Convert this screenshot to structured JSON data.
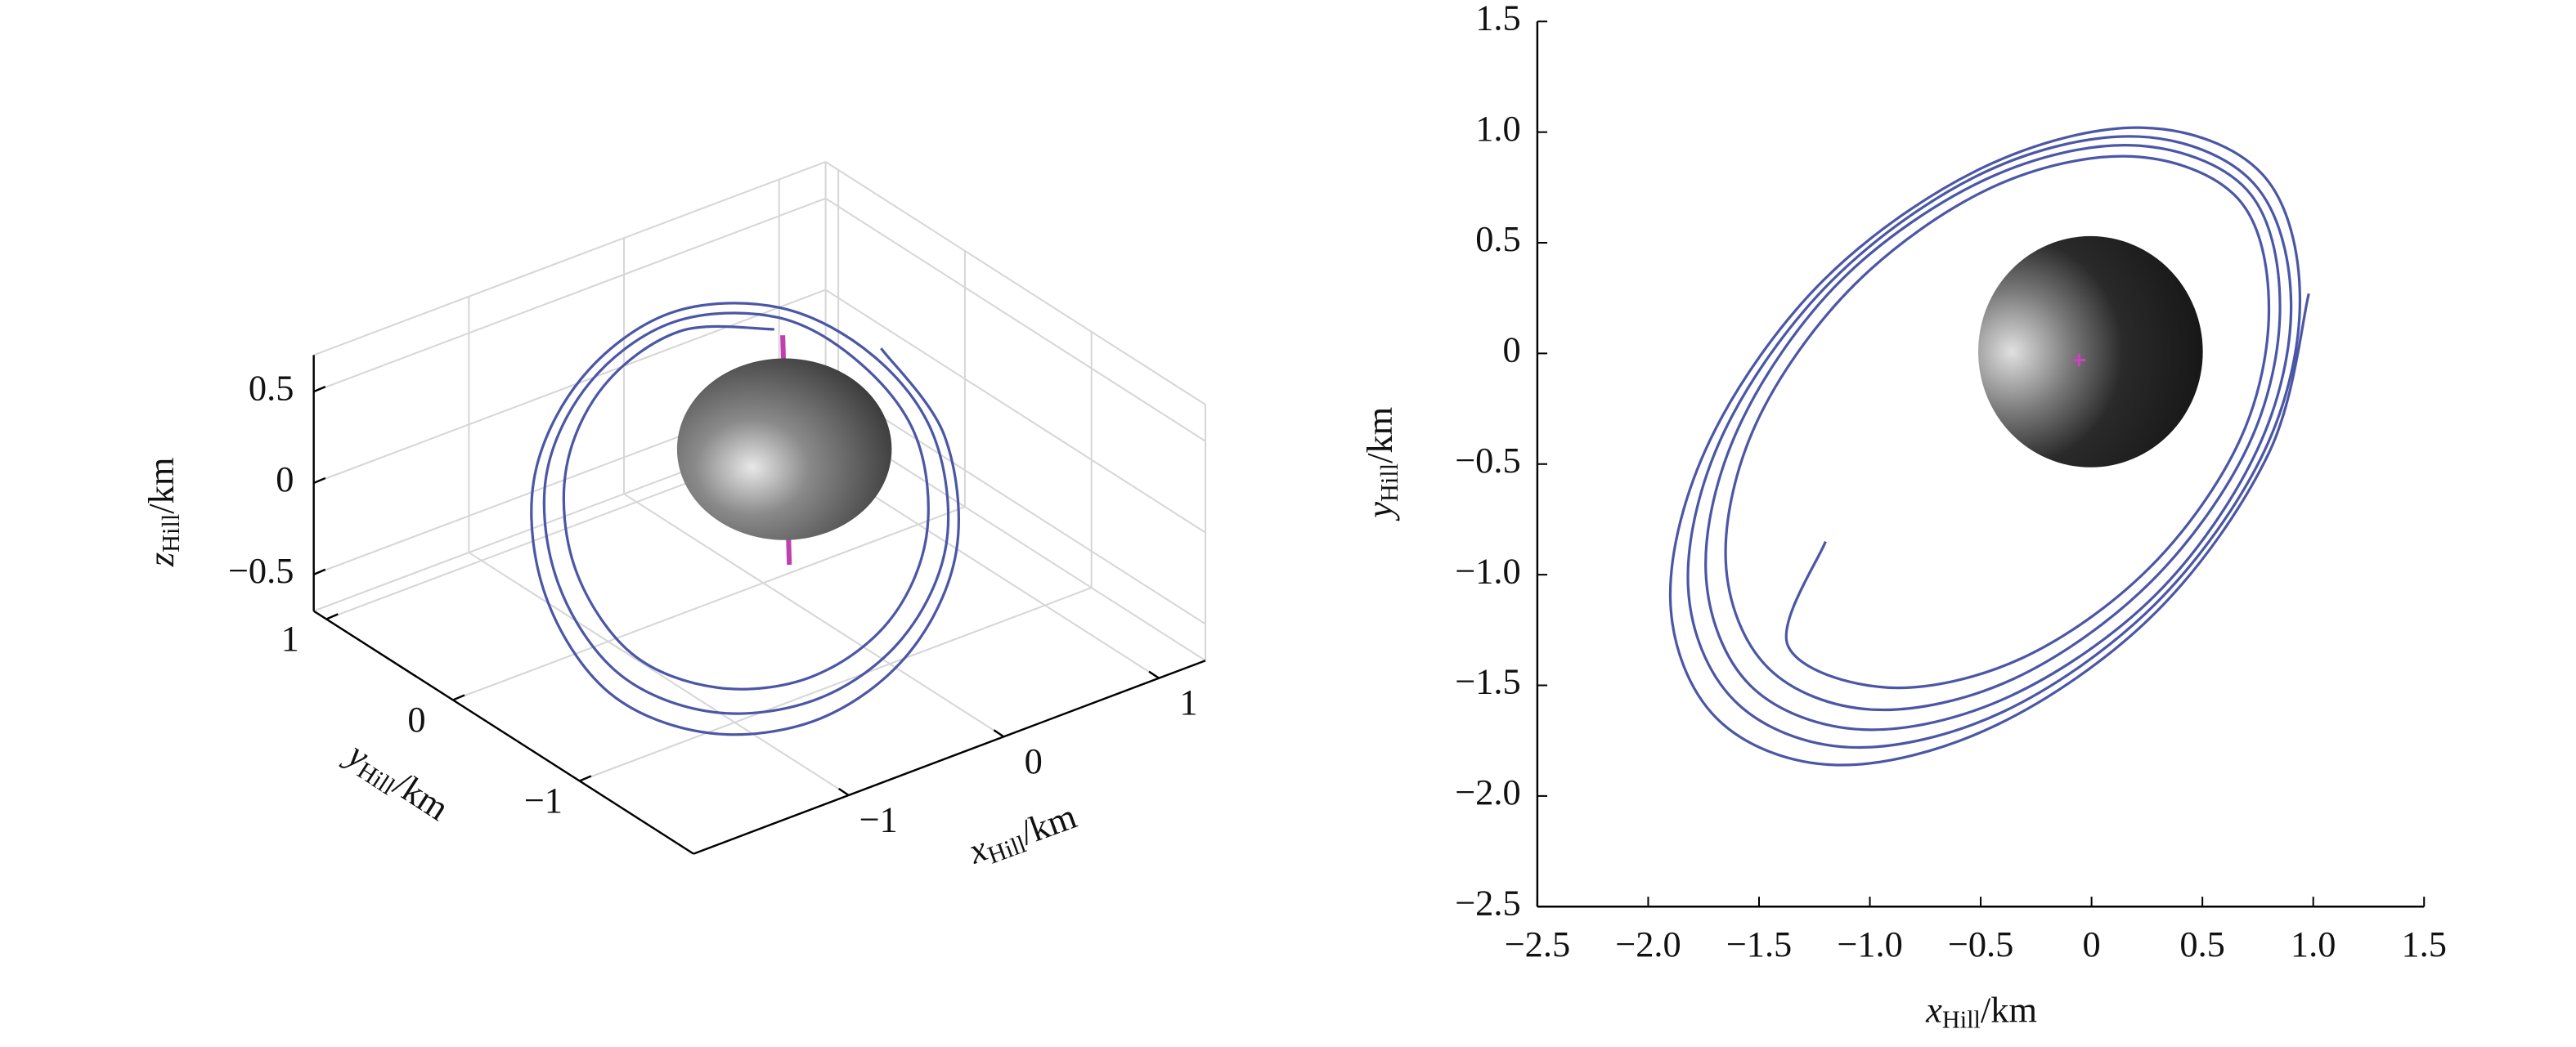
{
  "chart_data": [
    {
      "type": "line3d",
      "xlabel": {
        "symbol": "x",
        "subscript": "Hill",
        "unit": "/km"
      },
      "ylabel": {
        "symbol": "y",
        "subscript": "Hill",
        "unit": "/km"
      },
      "zlabel": {
        "symbol": "z",
        "subscript": "Hill",
        "unit": "/km"
      },
      "color": "#4b57a6",
      "xlim": [
        -2.0,
        1.3
      ],
      "ylim": [
        -1.9,
        1.1
      ],
      "zlim": [
        -0.7,
        0.7
      ],
      "xticks": [
        {
          "value": -1,
          "label": "−1"
        },
        0,
        1
      ],
      "yticks": [
        {
          "value": -1,
          "label": "−1"
        },
        0,
        1
      ],
      "zticks": [
        {
          "value": -0.5,
          "label": "−0.5"
        },
        0,
        0.5
      ],
      "x": [
        0.61,
        0.16,
        -0.44,
        -1.02,
        -1.43,
        -1.56,
        -1.37,
        -0.92,
        -0.32,
        0.26,
        0.67,
        0.8,
        0.7,
        0.19,
        -0.47,
        -1.13,
        -1.59,
        -1.74,
        -1.54,
        -1.03,
        -0.37,
        0.29,
        0.75,
        0.9,
        0.77,
        0.23,
        -0.49,
        -1.21,
        -1.72,
        -1.9,
        -1.69,
        -1.15,
        -0.43,
        0.29,
        0.8,
        0.98
      ],
      "y": [
        0.66,
        0.85,
        0.72,
        0.31,
        -0.27,
        -0.87,
        -1.32,
        -1.51,
        -1.38,
        -0.97,
        -0.39,
        0.21,
        0.74,
        0.94,
        0.79,
        0.33,
        -0.33,
        -0.99,
        -1.5,
        -1.7,
        -1.55,
        -1.09,
        -0.43,
        0.23,
        0.81,
        1.02,
        0.84,
        0.33,
        -0.39,
        -1.11,
        -1.65,
        -1.86,
        -1.68,
        -1.17,
        -0.45,
        0.27
      ],
      "z": [
        0.2,
        0.25,
        0.2,
        0.1,
        -0.05,
        -0.2,
        -0.25,
        -0.25,
        -0.2,
        -0.1,
        0.05,
        0.15,
        0.2,
        0.25,
        0.2,
        0.1,
        -0.05,
        -0.2,
        -0.25,
        -0.25,
        -0.2,
        -0.1,
        0.05,
        0.15,
        0.2,
        0.25,
        0.2,
        0.1,
        -0.05,
        -0.2,
        -0.25,
        -0.25,
        -0.2,
        -0.1,
        0.05,
        0.15
      ]
    },
    {
      "type": "line",
      "xlabel": {
        "symbol": "x",
        "subscript": "Hill",
        "unit": "/km"
      },
      "ylabel": {
        "symbol": "y",
        "subscript": "Hill",
        "unit": "/km"
      },
      "color": "#4b57a6",
      "xlim": [
        -2.5,
        1.5
      ],
      "ylim": [
        -2.5,
        1.5
      ],
      "xticks": [
        {
          "value": -2.5,
          "label": "−2.5"
        },
        {
          "value": -2,
          "label": "−2.0"
        },
        {
          "value": -1.5,
          "label": "−1.5"
        },
        {
          "value": -1,
          "label": "−1.0"
        },
        {
          "value": -0.5,
          "label": "−0.5"
        },
        0,
        0.5,
        {
          "value": 1,
          "label": "1.0"
        },
        1.5
      ],
      "yticks": [
        {
          "value": -2.5,
          "label": "−2.5"
        },
        {
          "value": -2,
          "label": "−2.0"
        },
        {
          "value": -1.5,
          "label": "−1.5"
        },
        {
          "value": -1,
          "label": "−1.0"
        },
        {
          "value": -0.5,
          "label": "−0.5"
        },
        0,
        0.5,
        {
          "value": 1,
          "label": "1.0"
        },
        1.5
      ],
      "x": [
        -1.2,
        -1.37,
        -0.92,
        -0.32,
        0.26,
        0.67,
        0.8,
        0.66,
        0.18,
        -0.45,
        -1.07,
        -1.51,
        -1.65,
        -1.46,
        -0.98,
        -0.35,
        0.27,
        0.71,
        0.85,
        0.7,
        0.19,
        -0.47,
        -1.13,
        -1.59,
        -1.74,
        -1.54,
        -1.03,
        -0.37,
        0.29,
        0.75,
        0.9,
        0.73,
        0.21,
        -0.48,
        -1.17,
        -1.66,
        -1.82,
        -1.61,
        -1.09,
        -0.4,
        0.29,
        0.78,
        0.94,
        0.77,
        0.23,
        -0.49,
        -1.21,
        -1.72,
        -1.9,
        -1.69,
        -1.15,
        -0.43,
        0.29,
        0.8,
        0.98
      ],
      "y": [
        -0.85,
        -1.32,
        -1.51,
        -1.38,
        -0.97,
        -0.39,
        0.21,
        0.7,
        0.89,
        0.75,
        0.31,
        -0.31,
        -0.94,
        -1.42,
        -1.61,
        -1.47,
        -1.03,
        -0.41,
        0.22,
        0.74,
        0.94,
        0.79,
        0.33,
        -0.33,
        -0.99,
        -1.5,
        -1.7,
        -1.55,
        -1.09,
        -0.43,
        0.23,
        0.77,
        0.98,
        0.82,
        0.33,
        -0.36,
        -1.05,
        -1.57,
        -1.78,
        -1.62,
        -1.13,
        -0.44,
        0.25,
        0.81,
        1.02,
        0.84,
        0.33,
        -0.39,
        -1.11,
        -1.65,
        -1.86,
        -1.68,
        -1.17,
        -0.45,
        0.27
      ]
    }
  ]
}
